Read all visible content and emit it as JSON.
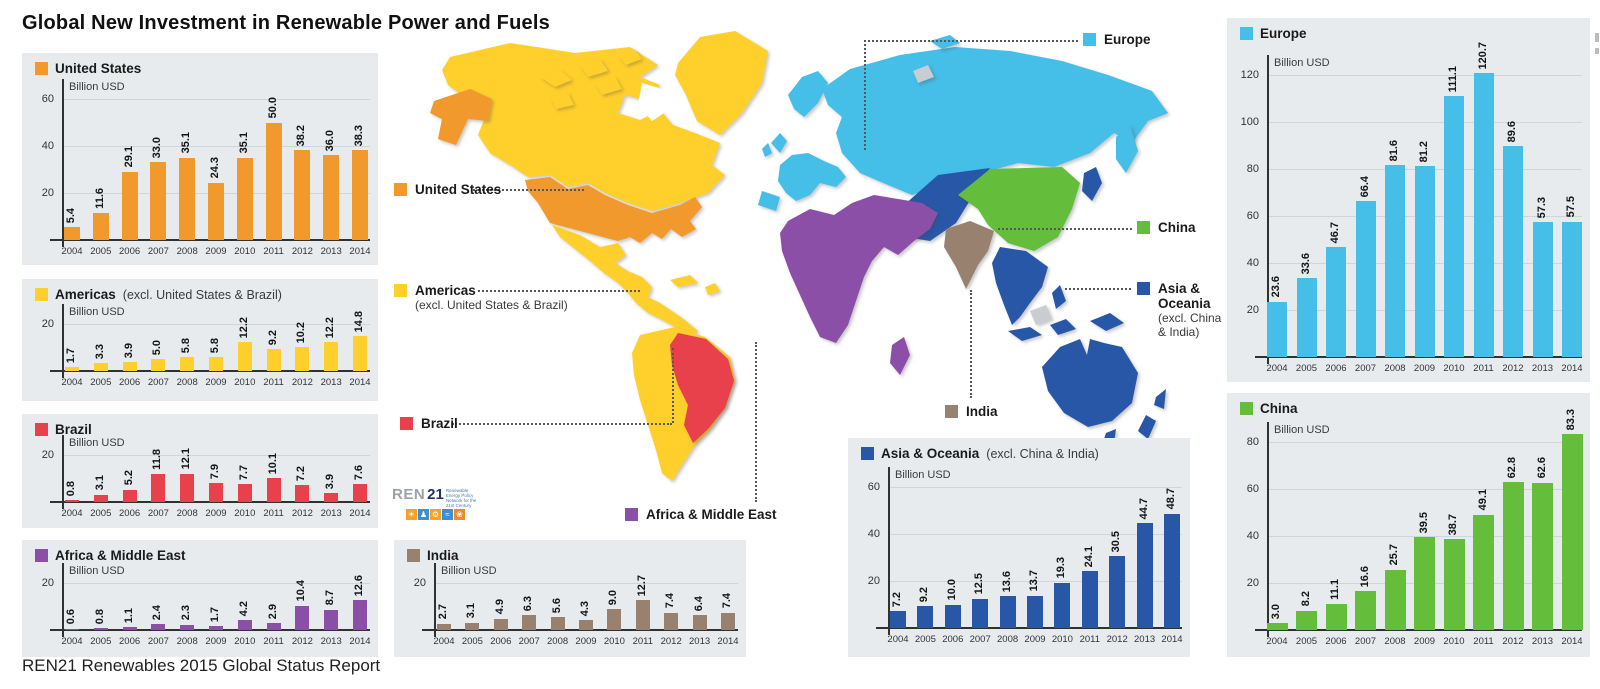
{
  "title": "Global New Investment in Renewable Power and Fuels",
  "footer": "REN21 Renewables 2015 Global Status Report",
  "colors": {
    "united_states": "#F2992E",
    "americas": "#FFD02C",
    "brazil": "#E8414C",
    "africa_middle_east": "#8C4FA8",
    "india": "#98816F",
    "asia_oceania": "#2757A6",
    "europe": "#45BEE8",
    "china": "#64BE3C",
    "map_gray": "#C9CDD1",
    "panel_background": "#E8EBEE"
  },
  "chart_data": [
    {
      "type": "bar",
      "key": "united_states",
      "title": "United States",
      "title_suffix": "",
      "unit": "Billion USD",
      "color": "#F2992E",
      "categories": [
        "2004",
        "2005",
        "2006",
        "2007",
        "2008",
        "2009",
        "2010",
        "2011",
        "2012",
        "2013",
        "2014"
      ],
      "values": [
        5.4,
        11.6,
        29.1,
        33.0,
        35.1,
        24.3,
        35.1,
        50.0,
        38.2,
        36.0,
        38.3
      ],
      "yticks": [
        20,
        40,
        60
      ],
      "ylim": [
        0,
        65
      ]
    },
    {
      "type": "bar",
      "key": "americas",
      "title": "Americas",
      "title_suffix": "(excl. United States & Brazil)",
      "unit": "Billion USD",
      "color": "#FFD02C",
      "categories": [
        "2004",
        "2005",
        "2006",
        "2007",
        "2008",
        "2009",
        "2010",
        "2011",
        "2012",
        "2013",
        "2014"
      ],
      "values": [
        1.7,
        3.3,
        3.9,
        5.0,
        5.8,
        5.8,
        12.2,
        9.2,
        10.2,
        12.2,
        14.8
      ],
      "yticks": [
        20
      ],
      "ylim": [
        0,
        24
      ]
    },
    {
      "type": "bar",
      "key": "brazil",
      "title": "Brazil",
      "title_suffix": "",
      "unit": "Billion USD",
      "color": "#E8414C",
      "categories": [
        "2004",
        "2005",
        "2006",
        "2007",
        "2008",
        "2009",
        "2010",
        "2011",
        "2012",
        "2013",
        "2014"
      ],
      "values": [
        0.8,
        3.1,
        5.2,
        11.8,
        12.1,
        7.9,
        7.7,
        10.1,
        7.2,
        3.9,
        7.6
      ],
      "yticks": [
        20
      ],
      "ylim": [
        0,
        24
      ]
    },
    {
      "type": "bar",
      "key": "africa_middle_east",
      "title": "Africa & Middle East",
      "title_suffix": "",
      "unit": "Billion USD",
      "color": "#8C4FA8",
      "categories": [
        "2004",
        "2005",
        "2006",
        "2007",
        "2008",
        "2009",
        "2010",
        "2011",
        "2012",
        "2013",
        "2014"
      ],
      "values": [
        0.6,
        0.8,
        1.1,
        2.4,
        2.3,
        1.7,
        4.2,
        2.9,
        10.4,
        8.7,
        12.6
      ],
      "yticks": [
        20
      ],
      "ylim": [
        0,
        24
      ]
    },
    {
      "type": "bar",
      "key": "india",
      "title": "India",
      "title_suffix": "",
      "unit": "Billion USD",
      "color": "#98816F",
      "categories": [
        "2004",
        "2005",
        "2006",
        "2007",
        "2008",
        "2009",
        "2010",
        "2011",
        "2012",
        "2013",
        "2014"
      ],
      "values": [
        2.7,
        3.1,
        4.9,
        6.3,
        5.6,
        4.3,
        9.0,
        12.7,
        7.4,
        6.4,
        7.4
      ],
      "yticks": [
        20
      ],
      "ylim": [
        0,
        24
      ]
    },
    {
      "type": "bar",
      "key": "asia_oceania",
      "title": "Asia & Oceania",
      "title_suffix": "(excl. China & India)",
      "unit": "Billion USD",
      "color": "#2757A6",
      "categories": [
        "2004",
        "2005",
        "2006",
        "2007",
        "2008",
        "2009",
        "2010",
        "2011",
        "2012",
        "2013",
        "2014"
      ],
      "values": [
        7.2,
        9.2,
        10.0,
        12.5,
        13.6,
        13.7,
        19.3,
        24.1,
        30.5,
        44.7,
        48.7
      ],
      "yticks": [
        20,
        40,
        60
      ],
      "ylim": [
        0,
        62
      ]
    },
    {
      "type": "bar",
      "key": "europe",
      "title": "Europe",
      "title_suffix": "",
      "unit": "Billion USD",
      "color": "#45BEE8",
      "categories": [
        "2004",
        "2005",
        "2006",
        "2007",
        "2008",
        "2009",
        "2010",
        "2011",
        "2012",
        "2013",
        "2014"
      ],
      "values": [
        23.6,
        33.6,
        46.7,
        66.4,
        81.6,
        81.2,
        111.1,
        120.7,
        89.6,
        57.3,
        57.5
      ],
      "yticks": [
        20,
        40,
        60,
        80,
        100,
        120
      ],
      "ylim": [
        0,
        130
      ]
    },
    {
      "type": "bar",
      "key": "china",
      "title": "China",
      "title_suffix": "",
      "unit": "Billion USD",
      "color": "#64BE3C",
      "categories": [
        "2004",
        "2005",
        "2006",
        "2007",
        "2008",
        "2009",
        "2010",
        "2011",
        "2012",
        "2013",
        "2014"
      ],
      "values": [
        3.0,
        8.2,
        11.1,
        16.6,
        25.7,
        39.5,
        38.7,
        49.1,
        62.8,
        62.6,
        83.3
      ],
      "yticks": [
        20,
        40,
        60,
        80
      ],
      "ylim": [
        0,
        88
      ]
    }
  ],
  "map": {
    "labels": [
      {
        "key": "united-states",
        "text": "United States",
        "sub": "",
        "color": "#F2992E"
      },
      {
        "key": "americas",
        "text": "Americas",
        "sub": "(excl. United States & Brazil)",
        "color": "#FFD02C"
      },
      {
        "key": "brazil",
        "text": "Brazil",
        "sub": "",
        "color": "#E8414C"
      },
      {
        "key": "africa-middle-east",
        "text": "Africa & Middle East",
        "sub": "",
        "color": "#8C4FA8"
      },
      {
        "key": "india",
        "text": "India",
        "sub": "",
        "color": "#98816F"
      },
      {
        "key": "europe",
        "text": "Europe",
        "sub": "",
        "color": "#45BEE8"
      },
      {
        "key": "china",
        "text": "China",
        "sub": "",
        "color": "#64BE3C"
      },
      {
        "key": "asia-oceania",
        "text": "Asia & Oceania",
        "sub": "(excl. China & India)",
        "color": "#2757A6"
      }
    ],
    "logo": {
      "text_light": "REN",
      "text_dark": "21",
      "tagline": "Renewable Energy Policy Network for the 21st Century"
    }
  }
}
